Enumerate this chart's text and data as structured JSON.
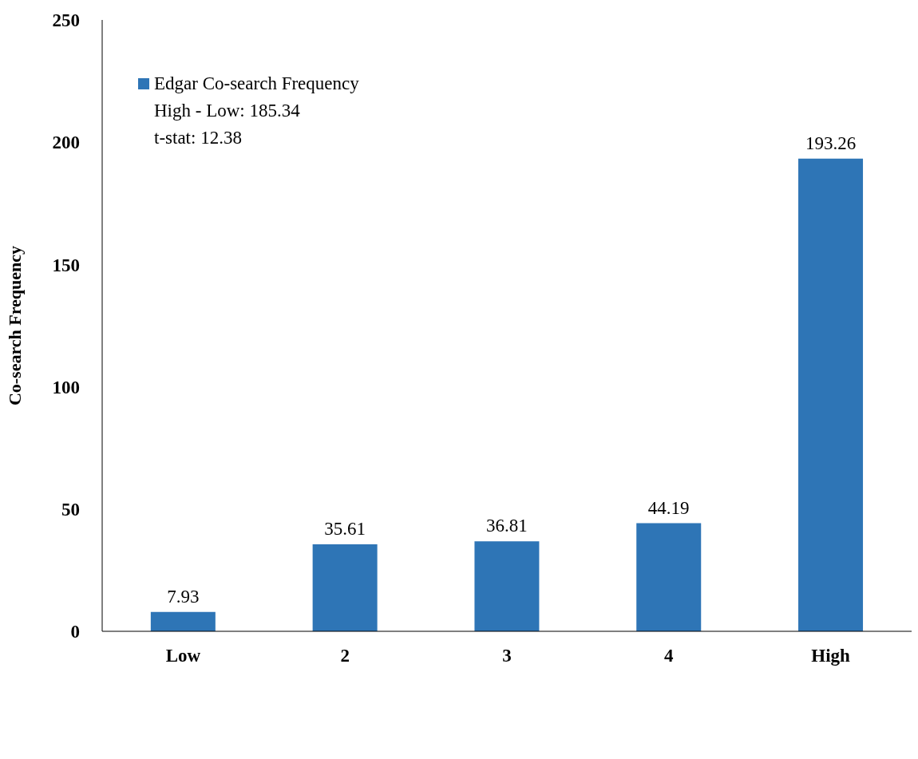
{
  "chart_data": {
    "type": "bar",
    "ylabel": "Co-search Frequency",
    "categories": [
      "Low",
      "2",
      "3",
      "4",
      "High"
    ],
    "series": [
      {
        "name": "Edgar Co-search Frequency",
        "color": "#2e75b6",
        "values": [
          7.93,
          35.61,
          36.81,
          44.19,
          193.26
        ]
      }
    ],
    "ylim": [
      0,
      250
    ],
    "yticks": [
      0,
      50,
      100,
      150,
      200,
      250
    ],
    "grid": false,
    "legend": "top left",
    "data_labels": true,
    "annotations": [
      "High - Low: 185.34",
      "t-stat: 12.38"
    ]
  }
}
